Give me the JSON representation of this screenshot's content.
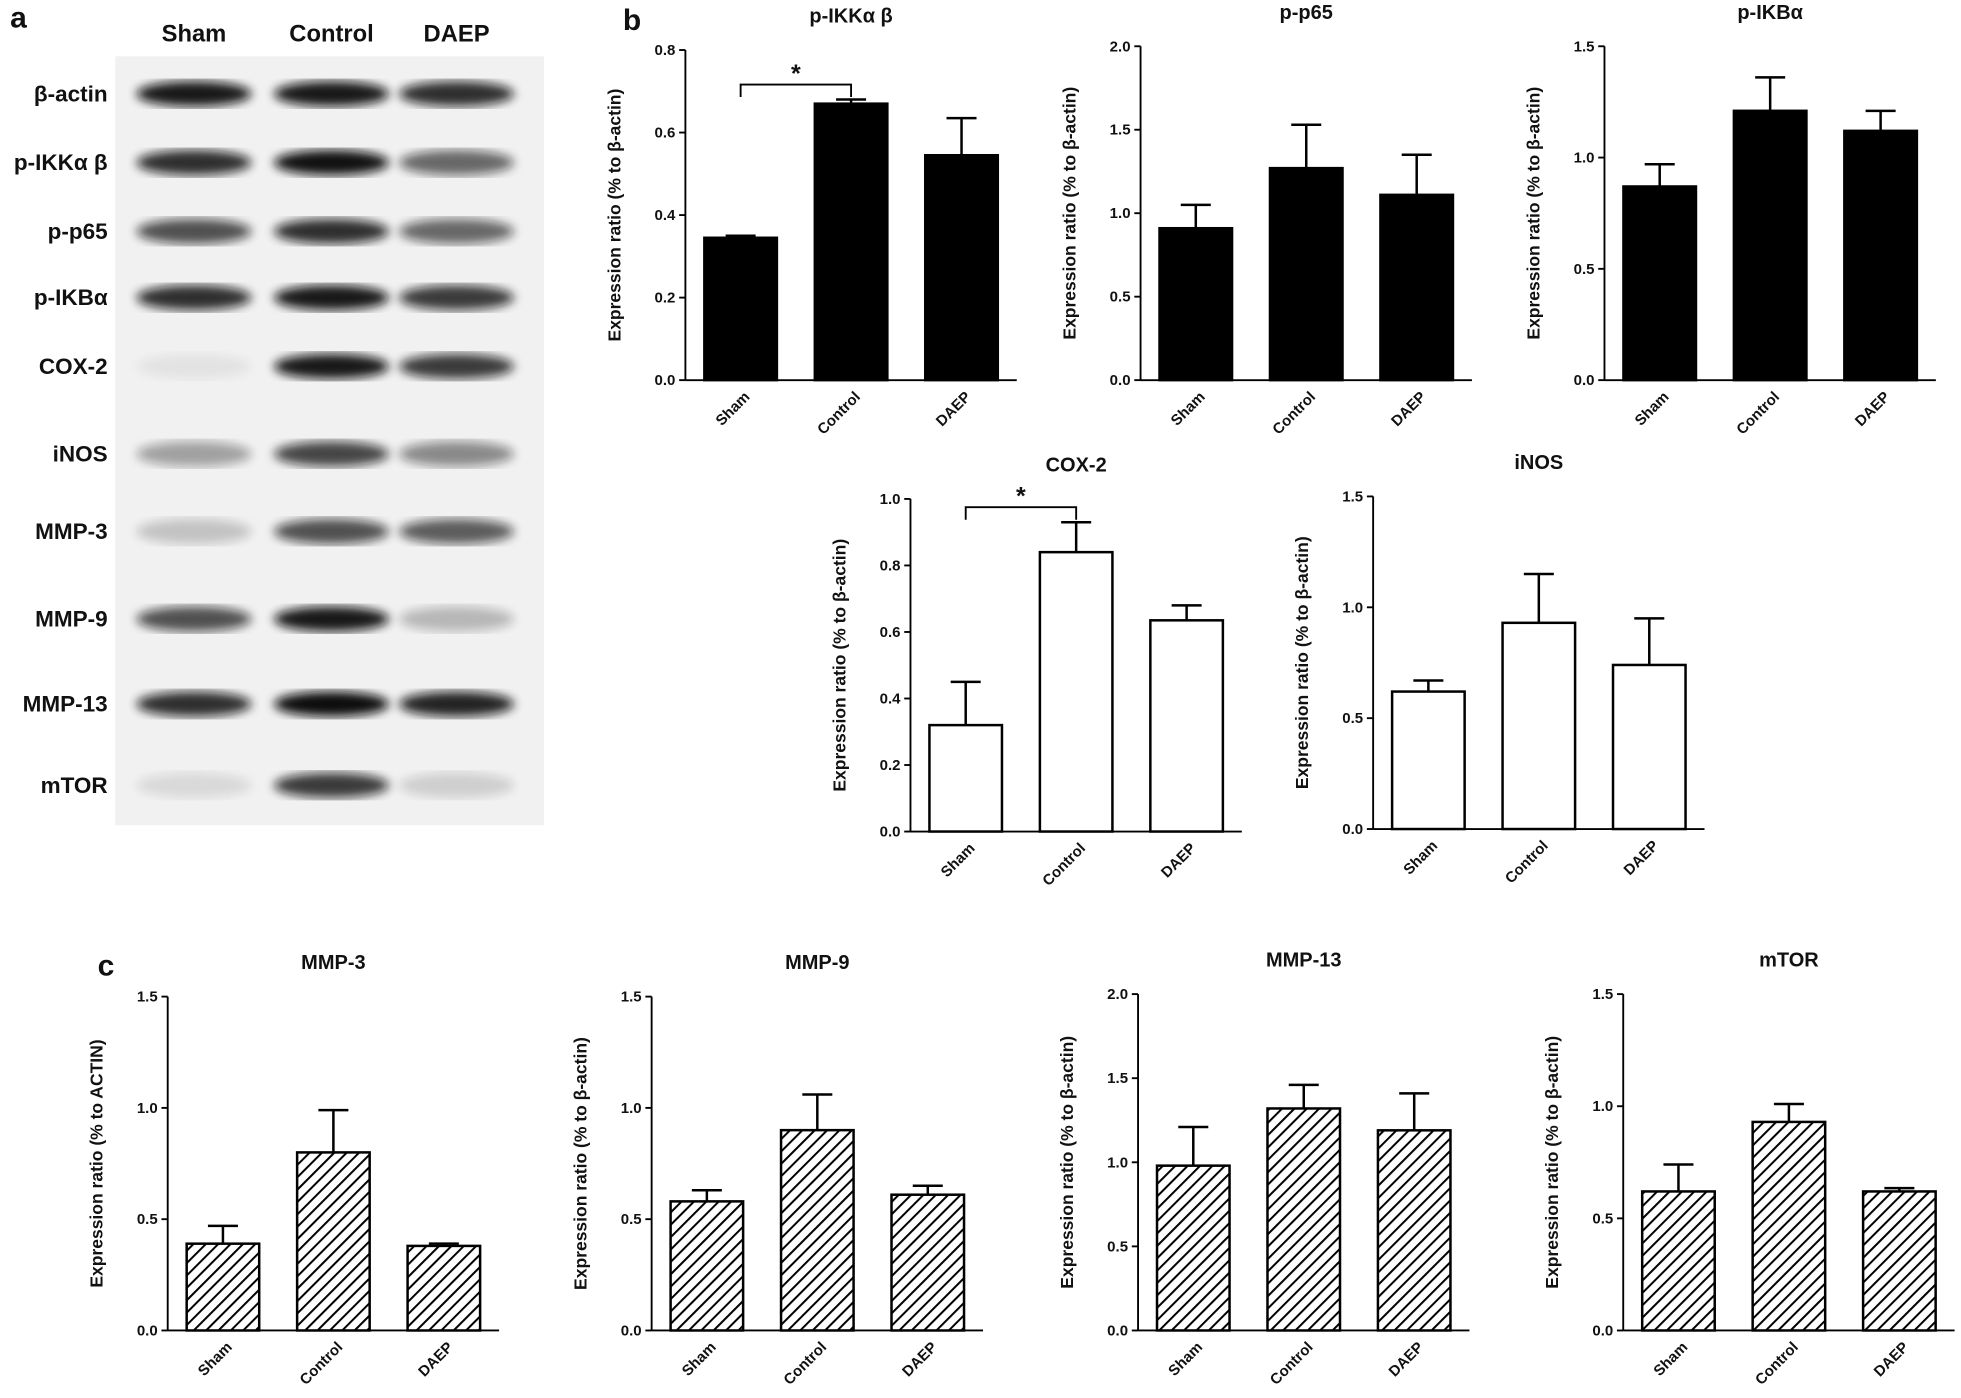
{
  "blot": {
    "panel_label": "a",
    "lanes": [
      "Sham",
      "Control",
      "DAEP"
    ],
    "proteins": [
      "β-actin",
      "p-IKKα β",
      "p-p65",
      "p-IKBα",
      "COX-2",
      "iNOS",
      "MMP-3",
      "MMP-9",
      "MMP-13",
      "mTOR"
    ]
  },
  "panel_labels": [
    "b",
    "c"
  ],
  "chart_data": [
    {
      "type": "bar",
      "title": "p-IKKα β",
      "ylabel": "Expression ratio (% to β-actin)",
      "categories": [
        "Sham",
        "Control",
        "DAEP"
      ],
      "values": [
        0.345,
        0.67,
        0.545
      ],
      "errors": [
        0.005,
        0.01,
        0.09
      ],
      "color": "#000000",
      "pattern": "solid",
      "ylim": [
        0,
        0.8
      ],
      "yticks": [
        {
          "value": 0,
          "label": "0.0"
        },
        0.2,
        0.4,
        0.6,
        0.8
      ],
      "significance": [
        {
          "label": "*",
          "between": [
            "Sham",
            "Control"
          ]
        }
      ]
    },
    {
      "type": "bar",
      "title": "p-p65",
      "ylabel": "Expression ratio (% to β-actin)",
      "categories": [
        "Sham",
        "Control",
        "DAEP"
      ],
      "values": [
        0.91,
        1.27,
        1.11
      ],
      "errors": [
        0.14,
        0.26,
        0.24
      ],
      "color": "#000000",
      "pattern": "solid",
      "ylim": [
        0,
        2
      ],
      "yticks": [
        {
          "value": 0,
          "label": "0.0"
        },
        0.5,
        {
          "value": 1,
          "label": "1.0"
        },
        1.5,
        {
          "value": 2,
          "label": "2.0"
        }
      ]
    },
    {
      "type": "bar",
      "title": "p-IKBα",
      "ylabel": "Expression ratio (% to β-actin)",
      "categories": [
        "Sham",
        "Control",
        "DAEP"
      ],
      "values": [
        0.87,
        1.21,
        1.12
      ],
      "errors": [
        0.1,
        0.15,
        0.09
      ],
      "color": "#000000",
      "pattern": "solid",
      "ylim": [
        0,
        1.5
      ],
      "yticks": [
        {
          "value": 0,
          "label": "0.0"
        },
        0.5,
        {
          "value": 1,
          "label": "1.0"
        },
        1.5
      ]
    },
    {
      "type": "bar",
      "title": "COX-2",
      "ylabel": "Expression ratio (% to β-actin)",
      "categories": [
        "Sham",
        "Control",
        "DAEP"
      ],
      "values": [
        0.32,
        0.84,
        0.635
      ],
      "errors": [
        0.13,
        0.09,
        0.045
      ],
      "color": "#ffffff",
      "pattern": "solid",
      "ylim": [
        0,
        1
      ],
      "yticks": [
        {
          "value": 0,
          "label": "0.0"
        },
        0.2,
        0.4,
        0.6,
        0.8,
        {
          "value": 1,
          "label": "1.0"
        }
      ],
      "significance": [
        {
          "label": "*",
          "between": [
            "Sham",
            "Control"
          ]
        }
      ]
    },
    {
      "type": "bar",
      "title": "iNOS",
      "ylabel": "Expression ratio (% to β-actin)",
      "categories": [
        "Sham",
        "Control",
        "DAEP"
      ],
      "values": [
        0.62,
        0.93,
        0.74
      ],
      "errors": [
        0.05,
        0.22,
        0.21
      ],
      "color": "#ffffff",
      "pattern": "solid",
      "ylim": [
        0,
        1.5
      ],
      "yticks": [
        {
          "value": 0,
          "label": "0.0"
        },
        0.5,
        {
          "value": 1,
          "label": "1.0"
        },
        1.5
      ]
    },
    {
      "type": "bar",
      "title": "MMP-3",
      "ylabel": "Expression ratio (% to ACTIN)",
      "categories": [
        "Sham",
        "Control",
        "DAEP"
      ],
      "values": [
        0.39,
        0.8,
        0.38
      ],
      "errors": [
        0.08,
        0.19,
        0.01
      ],
      "color": "#000000",
      "pattern": "hatch",
      "ylim": [
        0,
        1.5
      ],
      "yticks": [
        {
          "value": 0,
          "label": "0.0"
        },
        0.5,
        {
          "value": 1,
          "label": "1.0"
        },
        1.5
      ]
    },
    {
      "type": "bar",
      "title": "MMP-9",
      "ylabel": "Expression ratio (% to β-actin)",
      "categories": [
        "Sham",
        "Control",
        "DAEP"
      ],
      "values": [
        0.58,
        0.9,
        0.61
      ],
      "errors": [
        0.05,
        0.16,
        0.04
      ],
      "color": "#000000",
      "pattern": "hatch",
      "ylim": [
        0,
        1.5
      ],
      "yticks": [
        {
          "value": 0,
          "label": "0.0"
        },
        0.5,
        {
          "value": 1,
          "label": "1.0"
        },
        1.5
      ]
    },
    {
      "type": "bar",
      "title": "MMP-13",
      "ylabel": "Expression ratio (% to β-actin)",
      "categories": [
        "Sham",
        "Control",
        "DAEP"
      ],
      "values": [
        0.98,
        1.32,
        1.19
      ],
      "errors": [
        0.23,
        0.14,
        0.22
      ],
      "color": "#000000",
      "pattern": "hatch",
      "ylim": [
        0,
        2
      ],
      "yticks": [
        {
          "value": 0,
          "label": "0.0"
        },
        0.5,
        {
          "value": 1,
          "label": "1.0"
        },
        1.5,
        {
          "value": 2,
          "label": "2.0"
        }
      ]
    },
    {
      "type": "bar",
      "title": "mTOR",
      "ylabel": "Expression ratio (% to β-actin)",
      "categories": [
        "Sham",
        "Control",
        "DAEP"
      ],
      "values": [
        0.62,
        0.93,
        0.62
      ],
      "errors": [
        0.12,
        0.08,
        0.015
      ],
      "color": "#000000",
      "pattern": "hatch",
      "ylim": [
        0,
        1.5
      ],
      "yticks": [
        {
          "value": 0,
          "label": "0.0"
        },
        0.5,
        {
          "value": 1,
          "label": "1.0"
        },
        1.5
      ]
    }
  ]
}
